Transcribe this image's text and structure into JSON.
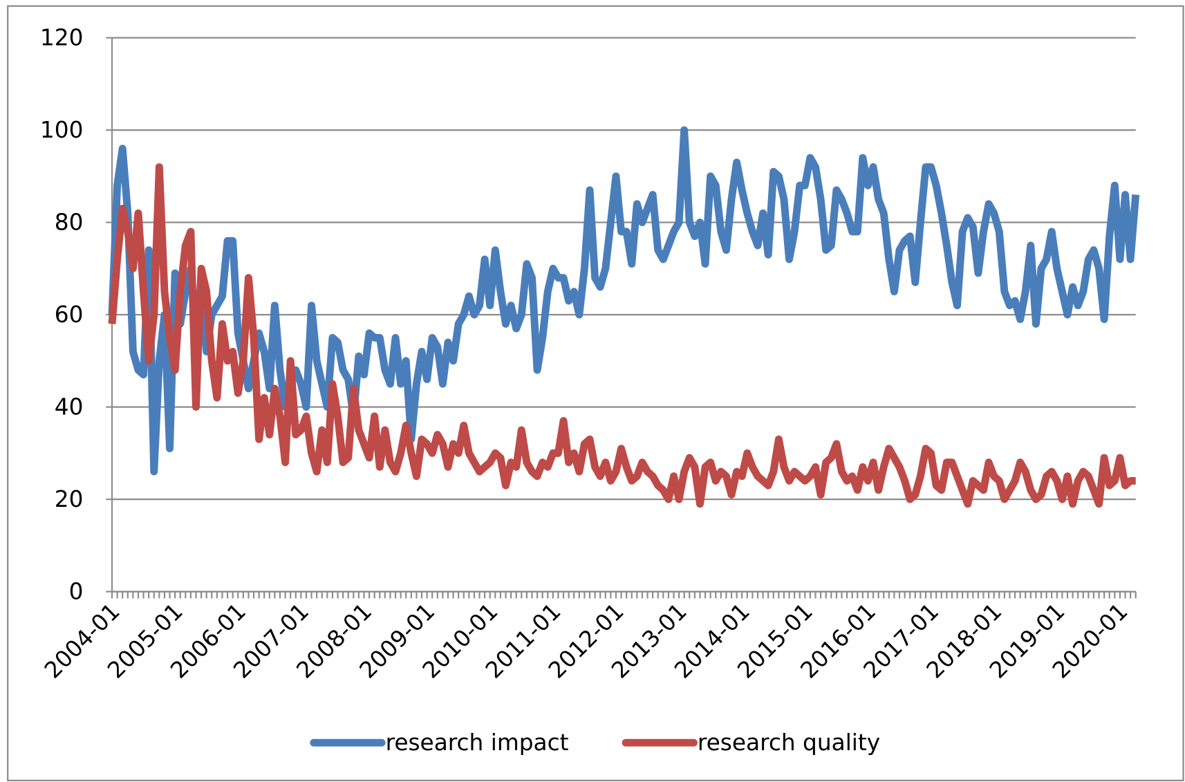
{
  "chart_data": {
    "type": "line",
    "categories": [
      "2004-01",
      null,
      null,
      null,
      null,
      null,
      null,
      null,
      null,
      null,
      null,
      null,
      "2005-01",
      null,
      null,
      null,
      null,
      null,
      null,
      null,
      null,
      null,
      null,
      null,
      "2006-01",
      null,
      null,
      null,
      null,
      null,
      null,
      null,
      null,
      null,
      null,
      null,
      "2007-01",
      null,
      null,
      null,
      null,
      null,
      null,
      null,
      null,
      null,
      null,
      null,
      "2008-01",
      null,
      null,
      null,
      null,
      null,
      null,
      null,
      null,
      null,
      null,
      null,
      "2009-01",
      null,
      null,
      null,
      null,
      null,
      null,
      null,
      null,
      null,
      null,
      null,
      "2010-01",
      null,
      null,
      null,
      null,
      null,
      null,
      null,
      null,
      null,
      null,
      null,
      "2011-01",
      null,
      null,
      null,
      null,
      null,
      null,
      null,
      null,
      null,
      null,
      null,
      "2012-01",
      null,
      null,
      null,
      null,
      null,
      null,
      null,
      null,
      null,
      null,
      null,
      "2013-01",
      null,
      null,
      null,
      null,
      null,
      null,
      null,
      null,
      null,
      null,
      null,
      "2014-01",
      null,
      null,
      null,
      null,
      null,
      null,
      null,
      null,
      null,
      null,
      null,
      "2015-01",
      null,
      null,
      null,
      null,
      null,
      null,
      null,
      null,
      null,
      null,
      null,
      "2016-01",
      null,
      null,
      null,
      null,
      null,
      null,
      null,
      null,
      null,
      null,
      null,
      "2017-01",
      null,
      null,
      null,
      null,
      null,
      null,
      null,
      null,
      null,
      null,
      null,
      "2018-01",
      null,
      null,
      null,
      null,
      null,
      null,
      null,
      null,
      null,
      null,
      null,
      "2019-01",
      null,
      null,
      null,
      null,
      null,
      null,
      null,
      null,
      null,
      null,
      null,
      "2020-01",
      null,
      null,
      null
    ],
    "series": [
      {
        "name": "research impact",
        "color": "#4a7ebb",
        "values": [
          60,
          88,
          96,
          82,
          52,
          48,
          47,
          74,
          26,
          50,
          60,
          31,
          69,
          58,
          65,
          70,
          55,
          68,
          52,
          60,
          62,
          64,
          76,
          76,
          56,
          50,
          44,
          50,
          56,
          52,
          44,
          62,
          48,
          40,
          45,
          48,
          45,
          40,
          62,
          50,
          45,
          40,
          55,
          54,
          48,
          46,
          38,
          51,
          47,
          56,
          55,
          55,
          48,
          45,
          55,
          45,
          50,
          33,
          45,
          52,
          46,
          55,
          53,
          45,
          54,
          50,
          58,
          60,
          64,
          60,
          62,
          72,
          62,
          74,
          65,
          58,
          62,
          57,
          60,
          71,
          68,
          48,
          55,
          65,
          70,
          68,
          68,
          63,
          65,
          60,
          70,
          87,
          68,
          66,
          70,
          80,
          90,
          78,
          78,
          71,
          84,
          80,
          83,
          86,
          74,
          72,
          75,
          78,
          80,
          100,
          80,
          77,
          80,
          71,
          90,
          88,
          78,
          74,
          85,
          93,
          87,
          82,
          78,
          75,
          82,
          73,
          91,
          90,
          85,
          72,
          78,
          88,
          88,
          94,
          92,
          85,
          74,
          75,
          87,
          85,
          82,
          78,
          78,
          94,
          88,
          92,
          85,
          82,
          72,
          65,
          74,
          76,
          77,
          67,
          80,
          92,
          92,
          88,
          82,
          75,
          67,
          62,
          78,
          81,
          79,
          69,
          78,
          84,
          82,
          78,
          65,
          62,
          63,
          59,
          65,
          75,
          58,
          70,
          72,
          78,
          70,
          65,
          60,
          66,
          62,
          65,
          72,
          74,
          70,
          59,
          77,
          88,
          72,
          86,
          72,
          86
        ]
      },
      {
        "name": "research quality",
        "color": "#be4b48",
        "values": [
          58,
          72,
          83,
          78,
          70,
          82,
          65,
          50,
          60,
          92,
          65,
          55,
          48,
          65,
          75,
          78,
          40,
          70,
          65,
          50,
          42,
          58,
          50,
          52,
          43,
          50,
          68,
          55,
          33,
          42,
          34,
          44,
          38,
          28,
          50,
          34,
          35,
          38,
          30,
          26,
          35,
          28,
          45,
          38,
          28,
          29,
          44,
          35,
          32,
          29,
          38,
          27,
          35,
          28,
          26,
          30,
          36,
          30,
          25,
          33,
          32,
          30,
          34,
          32,
          27,
          32,
          30,
          36,
          30,
          28,
          26,
          27,
          28,
          30,
          29,
          23,
          28,
          27,
          35,
          28,
          26,
          25,
          28,
          27,
          30,
          30,
          37,
          28,
          30,
          26,
          32,
          33,
          27,
          25,
          28,
          24,
          26,
          31,
          27,
          24,
          25,
          28,
          26,
          25,
          23,
          22,
          20,
          25,
          20,
          26,
          29,
          27,
          19,
          27,
          28,
          24,
          26,
          25,
          21,
          26,
          25,
          30,
          27,
          25,
          24,
          23,
          26,
          33,
          27,
          24,
          26,
          25,
          24,
          25,
          27,
          21,
          28,
          29,
          32,
          26,
          24,
          25,
          22,
          27,
          24,
          28,
          22,
          27,
          31,
          29,
          27,
          24,
          20,
          21,
          25,
          31,
          30,
          23,
          22,
          28,
          28,
          25,
          22,
          19,
          24,
          23,
          22,
          28,
          25,
          24,
          20,
          22,
          24,
          28,
          26,
          22,
          20,
          21,
          25,
          26,
          24,
          20,
          25,
          19,
          24,
          26,
          25,
          22,
          19,
          29,
          23,
          24,
          29,
          23,
          24,
          24
        ]
      }
    ],
    "ylim": [
      0,
      120
    ],
    "yticks": [
      0,
      20,
      40,
      60,
      80,
      100,
      120
    ],
    "grid": true,
    "legend": "bottom"
  }
}
